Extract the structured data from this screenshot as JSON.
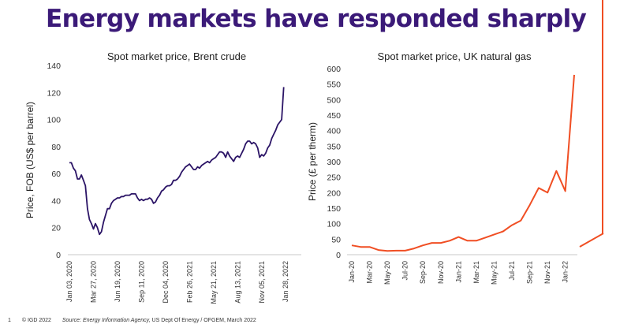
{
  "headline": "Energy markets have responded sharply",
  "footer": {
    "page_number": "1",
    "copyright": "© IGD 2022",
    "source_label": "Source:",
    "source_agency": "Energy Information Agency,",
    "source_rest": "US Dept Of Energy / OFGEM, March 2022"
  },
  "colors": {
    "headline": "#3b1a78",
    "brent": "#2b1466",
    "gas": "#f04e23",
    "accent": "#f04e23"
  },
  "chart_data": [
    {
      "type": "line",
      "title": "Spot market price, Brent crude",
      "ylabel": "Price, FOB (US$ per barrel)",
      "xlabel": "",
      "ylim": [
        0,
        140
      ],
      "yticks": [
        "0",
        "20",
        "40",
        "60",
        "80",
        "100",
        "120",
        "140"
      ],
      "xticks": [
        "Jan 03, 2020",
        "Mar 27, 2020",
        "Jun 19, 2020",
        "Sep 11, 2020",
        "Dec 04, 2020",
        "Feb 26, 2021",
        "May 21, 2021",
        "Aug 13, 2021",
        "Nov 05, 2021",
        "Jan 28, 2022"
      ],
      "x_range_weeks": [
        0,
        115
      ],
      "series": [
        {
          "points": [
            [
              0,
              68
            ],
            [
              1,
              68
            ],
            [
              2,
              64
            ],
            [
              3,
              62
            ],
            [
              4,
              56
            ],
            [
              5,
              56
            ],
            [
              6,
              59
            ],
            [
              7,
              55
            ],
            [
              8,
              51
            ],
            [
              9,
              34
            ],
            [
              10,
              26
            ],
            [
              11,
              23
            ],
            [
              12,
              19
            ],
            [
              13,
              23
            ],
            [
              14,
              20
            ],
            [
              15,
              15
            ],
            [
              16,
              17
            ],
            [
              17,
              24
            ],
            [
              18,
              29
            ],
            [
              19,
              34
            ],
            [
              20,
              34
            ],
            [
              21,
              38
            ],
            [
              22,
              40
            ],
            [
              23,
              41
            ],
            [
              24,
              42
            ],
            [
              25,
              42
            ],
            [
              26,
              43
            ],
            [
              27,
              43
            ],
            [
              28,
              44
            ],
            [
              29,
              44
            ],
            [
              30,
              44
            ],
            [
              31,
              45
            ],
            [
              32,
              45
            ],
            [
              33,
              45
            ],
            [
              34,
              42
            ],
            [
              35,
              40
            ],
            [
              36,
              41
            ],
            [
              37,
              40
            ],
            [
              38,
              41
            ],
            [
              39,
              41
            ],
            [
              40,
              42
            ],
            [
              41,
              41
            ],
            [
              42,
              38
            ],
            [
              43,
              39
            ],
            [
              44,
              42
            ],
            [
              45,
              44
            ],
            [
              46,
              47
            ],
            [
              47,
              48
            ],
            [
              48,
              50
            ],
            [
              49,
              51
            ],
            [
              50,
              51
            ],
            [
              51,
              52
            ],
            [
              52,
              55
            ],
            [
              53,
              55
            ],
            [
              54,
              56
            ],
            [
              55,
              58
            ],
            [
              56,
              61
            ],
            [
              57,
              63
            ],
            [
              58,
              65
            ],
            [
              59,
              66
            ],
            [
              60,
              67
            ],
            [
              61,
              65
            ],
            [
              62,
              63
            ],
            [
              63,
              63
            ],
            [
              64,
              65
            ],
            [
              65,
              64
            ],
            [
              66,
              66
            ],
            [
              67,
              67
            ],
            [
              68,
              68
            ],
            [
              69,
              69
            ],
            [
              70,
              68
            ],
            [
              71,
              70
            ],
            [
              72,
              71
            ],
            [
              73,
              72
            ],
            [
              74,
              74
            ],
            [
              75,
              76
            ],
            [
              76,
              76
            ],
            [
              77,
              75
            ],
            [
              78,
              72
            ],
            [
              79,
              76
            ],
            [
              80,
              73
            ],
            [
              81,
              71
            ],
            [
              82,
              69
            ],
            [
              83,
              72
            ],
            [
              84,
              73
            ],
            [
              85,
              72
            ],
            [
              86,
              75
            ],
            [
              87,
              78
            ],
            [
              88,
              82
            ],
            [
              89,
              84
            ],
            [
              90,
              84
            ],
            [
              91,
              82
            ],
            [
              92,
              83
            ],
            [
              93,
              82
            ],
            [
              94,
              79
            ],
            [
              95,
              72
            ],
            [
              96,
              74
            ],
            [
              97,
              73
            ],
            [
              98,
              75
            ],
            [
              99,
              79
            ],
            [
              100,
              81
            ],
            [
              101,
              86
            ],
            [
              102,
              89
            ],
            [
              103,
              92
            ],
            [
              104,
              96
            ],
            [
              105,
              98
            ],
            [
              106,
              100
            ],
            [
              107,
              124
            ]
          ]
        }
      ]
    },
    {
      "type": "line",
      "title": "Spot market price, UK natural gas",
      "ylabel": "Price (£ per therm)",
      "xlabel": "",
      "ylim": [
        0,
        600
      ],
      "yticks": [
        "0",
        "50",
        "100",
        "150",
        "200",
        "250",
        "300",
        "350",
        "400",
        "450",
        "500",
        "550",
        "600"
      ],
      "categories": [
        "Jan-20",
        "Feb-20",
        "Mar-20",
        "Apr-20",
        "May-20",
        "Jun-20",
        "Jul-20",
        "Aug-20",
        "Sep-20",
        "Oct-20",
        "Nov-20",
        "Dec-20",
        "Jan-21",
        "Feb-21",
        "Mar-21",
        "Apr-21",
        "May-21",
        "Jun-21",
        "Jul-21",
        "Aug-21",
        "Sep-21",
        "Oct-21",
        "Nov-21",
        "Dec-21",
        "Jan-22",
        "Feb-22"
      ],
      "xticks": [
        "Jan-20",
        "Mar-20",
        "May-20",
        "Jul-20",
        "Sep-20",
        "Nov-20",
        "Jan-21",
        "Mar-21",
        "May-21",
        "Jul-21",
        "Sep-21",
        "Nov-21",
        "Jan-22"
      ],
      "series": [
        {
          "values": [
            30,
            25,
            25,
            15,
            12,
            13,
            13,
            20,
            30,
            38,
            38,
            45,
            57,
            45,
            45,
            55,
            65,
            75,
            95,
            110,
            160,
            215,
            200,
            270,
            205,
            580
          ]
        }
      ]
    }
  ]
}
